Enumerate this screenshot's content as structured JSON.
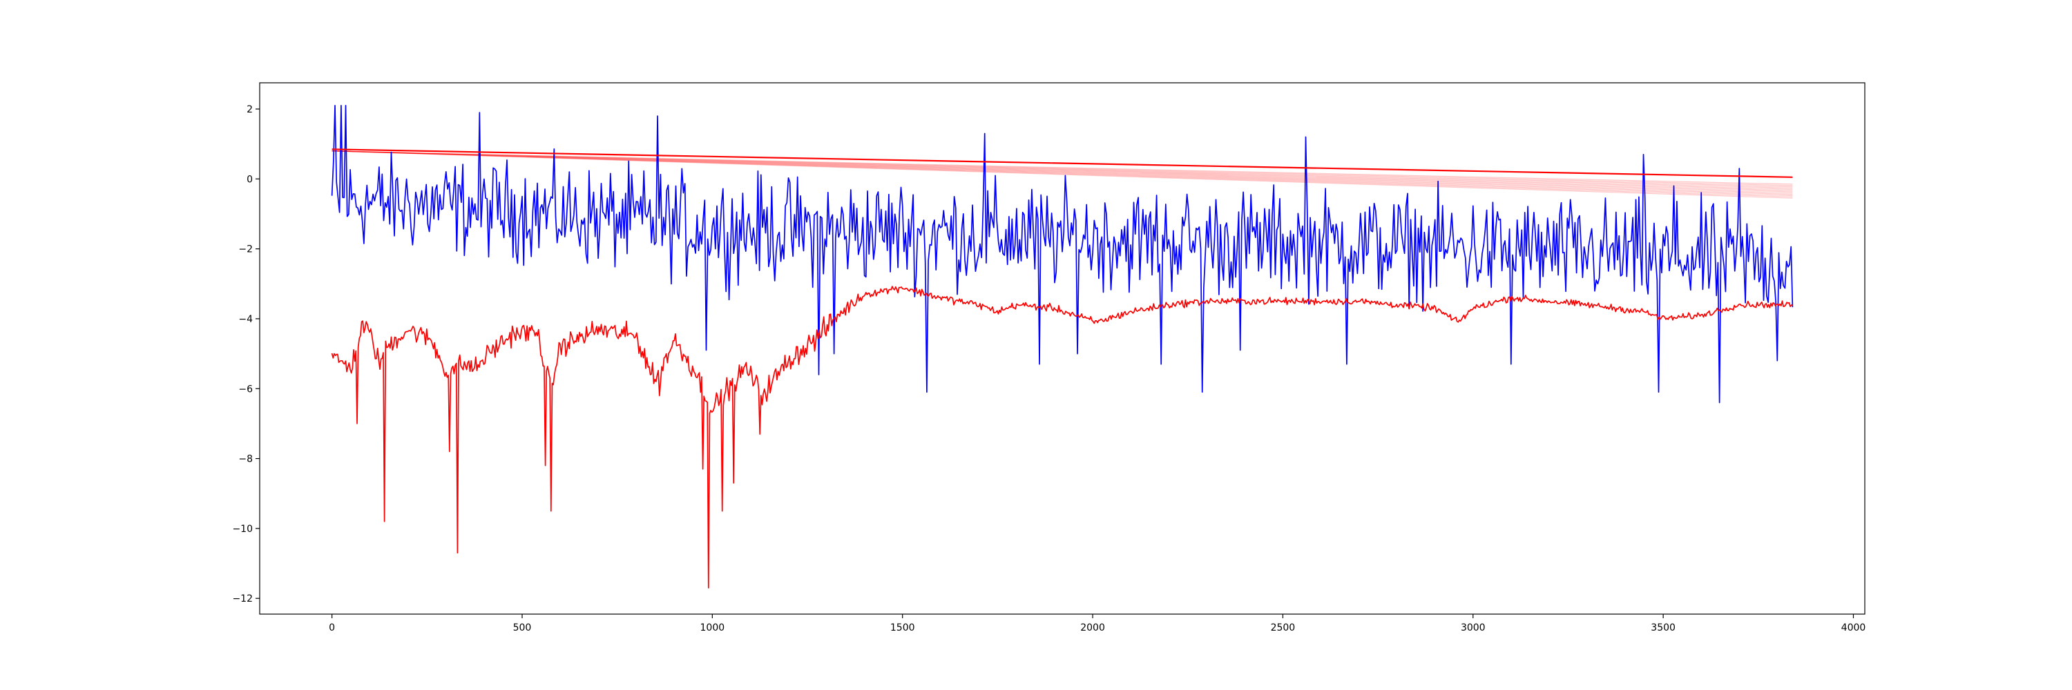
{
  "chart_data": {
    "type": "line",
    "title": "",
    "xlabel": "",
    "ylabel": "",
    "xlim": [
      -190,
      4030
    ],
    "ylim": [
      -12.45,
      2.75
    ],
    "x_ticks": [
      0,
      500,
      1000,
      1500,
      2000,
      2500,
      3000,
      3500,
      4000
    ],
    "y_ticks": [
      2,
      0,
      -2,
      -4,
      -6,
      -8,
      -10,
      -12
    ],
    "grid": false,
    "legend": "none",
    "series": [
      {
        "color": "#0000ff",
        "style": "noisy",
        "x_range": [
          0,
          3840
        ],
        "step": 4,
        "mean": [
          [
            0,
            -0.6
          ],
          [
            500,
            -0.9
          ],
          [
            1000,
            -1.4
          ],
          [
            1500,
            -1.5
          ],
          [
            2000,
            -1.7
          ],
          [
            2500,
            -1.8
          ],
          [
            3000,
            -2.0
          ],
          [
            3500,
            -2.2
          ],
          [
            3840,
            -2.4
          ]
        ],
        "spread": [
          [
            0,
            1.2
          ],
          [
            1000,
            1.35
          ],
          [
            2000,
            1.35
          ],
          [
            3840,
            1.4
          ]
        ],
        "peaks": [
          [
            10,
            2.1
          ],
          [
            25,
            2.1
          ],
          [
            38,
            2.1
          ],
          [
            390,
            1.9
          ],
          [
            855,
            1.8
          ],
          [
            1715,
            1.3
          ],
          [
            2560,
            1.2
          ],
          [
            3450,
            0.7
          ],
          [
            3530,
            -0.2
          ],
          [
            3700,
            0.3
          ]
        ],
        "troughs": [
          [
            1565,
            -6.1
          ],
          [
            2290,
            -6.1
          ],
          [
            3490,
            -6.1
          ],
          [
            3650,
            -6.4
          ],
          [
            3100,
            -5.3
          ],
          [
            2670,
            -5.3
          ],
          [
            2180,
            -5.3
          ],
          [
            1860,
            -5.3
          ],
          [
            3800,
            -5.2
          ],
          [
            1320,
            -5.0
          ],
          [
            985,
            -4.9
          ],
          [
            1280,
            -5.6
          ],
          [
            1960,
            -5.0
          ],
          [
            2390,
            -4.9
          ]
        ]
      },
      {
        "color": "#ff0000",
        "style": "noisy",
        "x_range": [
          0,
          3840
        ],
        "step": 3,
        "mean": [
          [
            0,
            -5.1
          ],
          [
            50,
            -5.4
          ],
          [
            80,
            -4.2
          ],
          [
            100,
            -4.4
          ],
          [
            125,
            -5.3
          ],
          [
            145,
            -4.8
          ],
          [
            200,
            -4.3
          ],
          [
            260,
            -4.6
          ],
          [
            300,
            -5.5
          ],
          [
            340,
            -5.3
          ],
          [
            380,
            -5.4
          ],
          [
            410,
            -5.0
          ],
          [
            480,
            -4.4
          ],
          [
            540,
            -4.4
          ],
          [
            575,
            -6.0
          ],
          [
            600,
            -4.8
          ],
          [
            700,
            -4.3
          ],
          [
            800,
            -4.5
          ],
          [
            850,
            -5.8
          ],
          [
            900,
            -4.6
          ],
          [
            960,
            -5.6
          ],
          [
            1000,
            -6.6
          ],
          [
            1040,
            -6.0
          ],
          [
            1090,
            -5.4
          ],
          [
            1130,
            -6.2
          ],
          [
            1200,
            -5.2
          ],
          [
            1280,
            -4.5
          ],
          [
            1330,
            -3.9
          ],
          [
            1400,
            -3.3
          ],
          [
            1500,
            -3.1
          ],
          [
            1600,
            -3.4
          ],
          [
            1700,
            -3.6
          ],
          [
            1750,
            -3.8
          ],
          [
            1800,
            -3.6
          ],
          [
            1900,
            -3.7
          ],
          [
            2010,
            -4.1
          ],
          [
            2100,
            -3.8
          ],
          [
            2200,
            -3.6
          ],
          [
            2300,
            -3.5
          ],
          [
            2500,
            -3.5
          ],
          [
            2700,
            -3.5
          ],
          [
            2900,
            -3.7
          ],
          [
            2960,
            -4.1
          ],
          [
            3000,
            -3.7
          ],
          [
            3100,
            -3.4
          ],
          [
            3200,
            -3.5
          ],
          [
            3300,
            -3.6
          ],
          [
            3450,
            -3.8
          ],
          [
            3500,
            -4.0
          ],
          [
            3600,
            -3.9
          ],
          [
            3700,
            -3.6
          ],
          [
            3840,
            -3.6
          ]
        ],
        "spread": [
          [
            0,
            0.25
          ],
          [
            1300,
            0.3
          ],
          [
            1400,
            0.1
          ],
          [
            3840,
            0.08
          ]
        ],
        "troughs": [
          [
            137,
            -9.8
          ],
          [
            329,
            -10.7
          ],
          [
            577,
            -9.5
          ],
          [
            990,
            -11.7
          ],
          [
            1025,
            -9.5
          ],
          [
            1055,
            -8.7
          ],
          [
            1125,
            -7.3
          ],
          [
            67,
            -7.0
          ],
          [
            310,
            -7.8
          ],
          [
            560,
            -8.2
          ],
          [
            975,
            -8.3
          ],
          [
            860,
            -6.2
          ]
        ]
      },
      {
        "color": "#ff0000",
        "style": "line",
        "points": [
          [
            0,
            0.85
          ],
          [
            3840,
            0.05
          ]
        ]
      }
    ],
    "fan_band": {
      "color": "#ff0000",
      "opacity": 0.22,
      "count": 12,
      "top": [
        [
          0,
          0.8
        ],
        [
          3840,
          -0.15
        ]
      ],
      "bottom": [
        [
          0,
          0.8
        ],
        [
          3840,
          -0.55
        ]
      ]
    }
  }
}
